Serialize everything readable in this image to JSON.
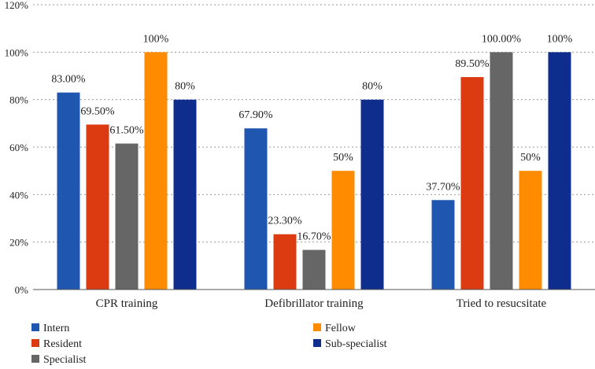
{
  "chart_data": {
    "type": "bar",
    "categories": [
      "CPR training",
      "Defibrillator training",
      "Tried to resucsitate"
    ],
    "series": [
      {
        "name": "Intern",
        "color": "#1f56b0",
        "values": [
          83.0,
          67.9,
          37.7
        ],
        "labels": [
          "83.00%",
          "67.90%",
          "37.70%"
        ]
      },
      {
        "name": "Resident",
        "color": "#dc3a10",
        "values": [
          69.5,
          23.3,
          89.5
        ],
        "labels": [
          "69.50%",
          "23.30%",
          "89.50%"
        ]
      },
      {
        "name": "Specialist",
        "color": "#666666",
        "values": [
          61.5,
          16.7,
          100.0
        ],
        "labels": [
          "61.50%",
          "16.70%",
          "100.00%"
        ]
      },
      {
        "name": "Fellow",
        "color": "#ff8c00",
        "values": [
          100,
          50,
          50
        ],
        "labels": [
          "100%",
          "50%",
          "50%"
        ]
      },
      {
        "name": "Sub-specialist",
        "color": "#0f2d8c",
        "values": [
          80,
          80,
          100
        ],
        "labels": [
          "80%",
          "80%",
          "100%"
        ]
      }
    ],
    "yticks": [
      "0%",
      "20%",
      "40%",
      "60%",
      "80%",
      "100%",
      "120%"
    ],
    "ylim": [
      0,
      120
    ],
    "grid": "horizontal-dashed",
    "legend_position": "bottom"
  }
}
